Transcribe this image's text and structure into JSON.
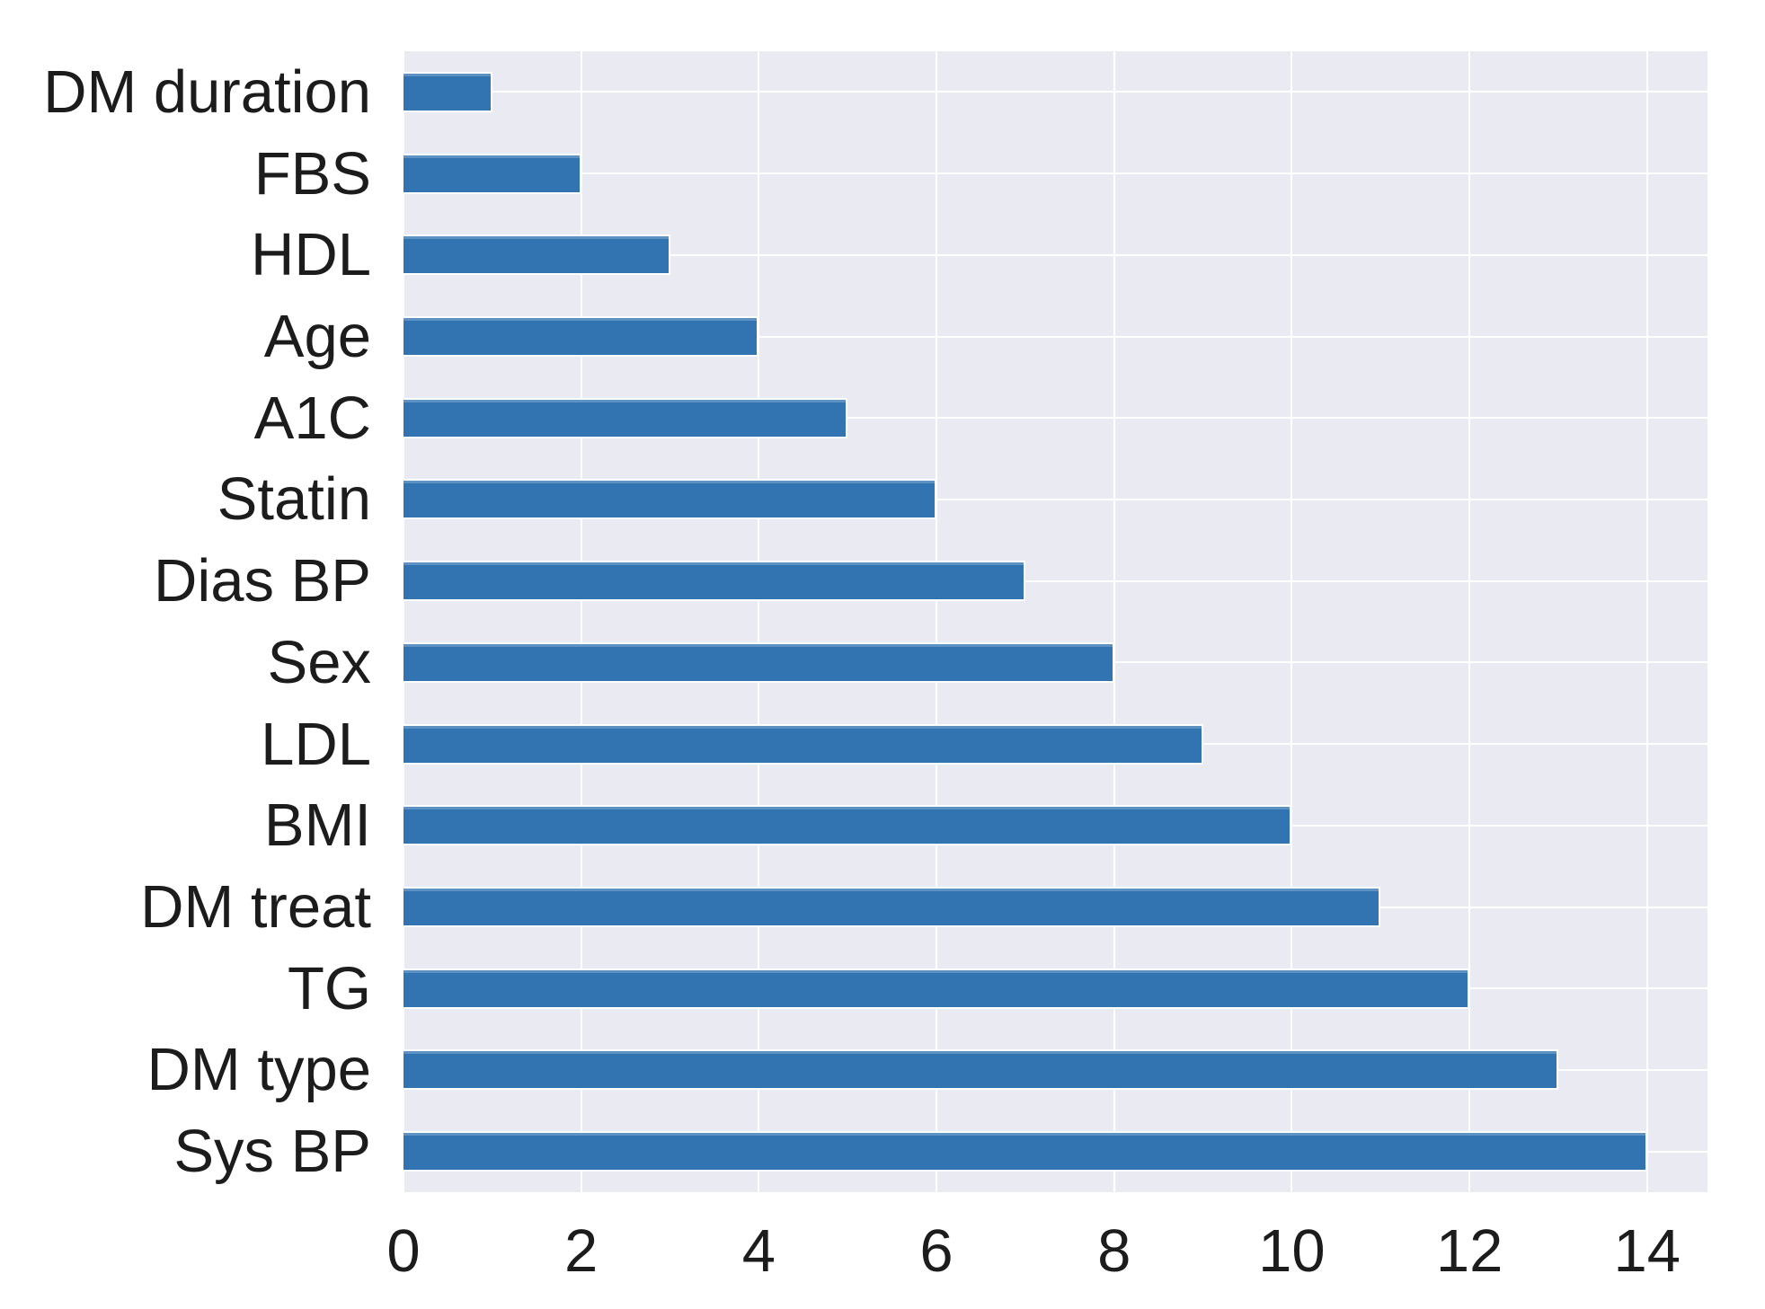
{
  "chart_data": {
    "type": "bar",
    "orientation": "horizontal",
    "title": "",
    "xlabel": "",
    "ylabel": "",
    "categories": [
      "DM duration",
      "FBS",
      "HDL",
      "Age",
      "A1C",
      "Statin",
      "Dias BP",
      "Sex",
      "LDL",
      "BMI",
      "DM treat",
      "TG",
      "DM type",
      "Sys BP"
    ],
    "values": [
      1,
      2,
      3,
      4,
      5,
      6,
      7,
      8,
      9,
      10,
      11,
      12,
      13,
      14
    ],
    "x_ticks": [
      0,
      2,
      4,
      6,
      8,
      10,
      12,
      14
    ],
    "xlim": [
      0,
      14.68
    ],
    "grid": true,
    "legend": false,
    "colors": {
      "bar": "#3174b1",
      "plot_background": "#eaeaf2",
      "gridline": "#ffffff",
      "text": "#1c1c1c",
      "figure_background": "#ffffff"
    }
  }
}
